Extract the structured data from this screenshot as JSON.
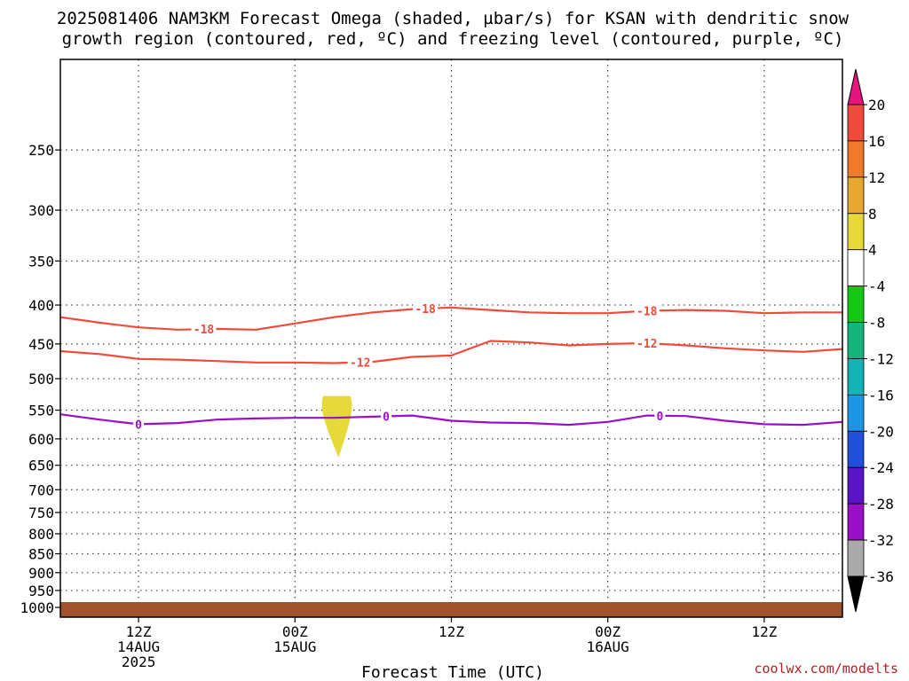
{
  "title": {
    "line1": "2025081406 NAM3KM Forecast Omega (shaded, µbar/s) for KSAN with dendritic snow",
    "line2": "growth region (contoured, red, ºC) and freezing level (contoured, purple, ºC)"
  },
  "credit": "coolwx.com/modelts",
  "chart_data": {
    "type": "line",
    "title": "2025081406 NAM3KM Forecast Omega (shaded, µbar/s) for KSAN with dendritic snow growth region (contoured, red, ºC) and freezing level (contoured, purple, ºC)",
    "xlabel": "Forecast Time (UTC)",
    "ylabel": "",
    "x_range_hours": [
      0,
      60
    ],
    "x_ticks": [
      {
        "hour": 6,
        "label": [
          "12Z",
          "14AUG",
          "2025"
        ]
      },
      {
        "hour": 18,
        "label": [
          "00Z",
          "15AUG"
        ]
      },
      {
        "hour": 30,
        "label": [
          "12Z"
        ]
      },
      {
        "hour": 42,
        "label": [
          "00Z",
          "16AUG"
        ]
      },
      {
        "hour": 54,
        "label": [
          "12Z"
        ]
      }
    ],
    "y_scale": "log-pressure",
    "y_range": [
      1030,
      190
    ],
    "y_ticks": [
      250,
      300,
      350,
      400,
      450,
      500,
      550,
      600,
      650,
      700,
      750,
      800,
      850,
      900,
      950,
      1000
    ],
    "grid": "dotted",
    "series": [
      {
        "name": "-18",
        "color": "#f04a3a",
        "x": [
          0,
          3,
          6,
          9,
          12,
          15,
          18,
          21,
          24,
          27,
          30,
          33,
          36,
          39,
          42,
          45,
          48,
          51,
          54,
          57,
          60
        ],
        "y": [
          415,
          422,
          428,
          431,
          430,
          431,
          423,
          415,
          409,
          405,
          403,
          406,
          409,
          410,
          410,
          407,
          406,
          407,
          410,
          409,
          409
        ],
        "label_positions_hour": [
          11,
          28,
          45
        ]
      },
      {
        "name": "-12",
        "color": "#f04a3a",
        "x": [
          0,
          3,
          6,
          9,
          12,
          15,
          18,
          21,
          24,
          27,
          30,
          33,
          36,
          39,
          42,
          45,
          48,
          51,
          54,
          57,
          60
        ],
        "y": [
          460,
          464,
          471,
          472,
          474,
          476,
          476,
          477,
          475,
          468,
          466,
          446,
          448,
          452,
          450,
          449,
          452,
          456,
          459,
          461,
          457
        ],
        "label_positions_hour": [
          23,
          45
        ]
      },
      {
        "name": "0",
        "color": "#9a10c8",
        "x": [
          0,
          3,
          6,
          9,
          12,
          15,
          18,
          21,
          24,
          27,
          30,
          33,
          36,
          39,
          42,
          45,
          48,
          51,
          54,
          57,
          60
        ],
        "y": [
          557,
          566,
          574,
          572,
          566,
          564,
          563,
          563,
          561,
          559,
          568,
          571,
          572,
          575,
          570,
          559,
          560,
          568,
          574,
          575,
          570
        ],
        "label_positions_hour": [
          6,
          25,
          46
        ]
      }
    ],
    "omega_shading": [
      {
        "value_range": [
          4,
          8
        ],
        "color": "#e6d93a",
        "hour_center": 21.2,
        "pressure_top": 527,
        "pressure_bottom": 635
      }
    ],
    "surface_fill_color": "#a0522d",
    "colorbar": {
      "levels": [
        "20",
        "16",
        "12",
        "8",
        "4",
        "-4",
        "-8",
        "-12",
        "-16",
        "-20",
        "-24",
        "-28",
        "-32",
        "-36"
      ],
      "colors": [
        "#e6147d",
        "#f04a3a",
        "#ef7a2a",
        "#e6a82e",
        "#e6d93a",
        "#ffffff",
        "#14c814",
        "#14b47d",
        "#14b4b4",
        "#1e96e6",
        "#1e50dc",
        "#5a14c8",
        "#9a10c8",
        "#aaaaaa",
        "#000000"
      ]
    }
  }
}
